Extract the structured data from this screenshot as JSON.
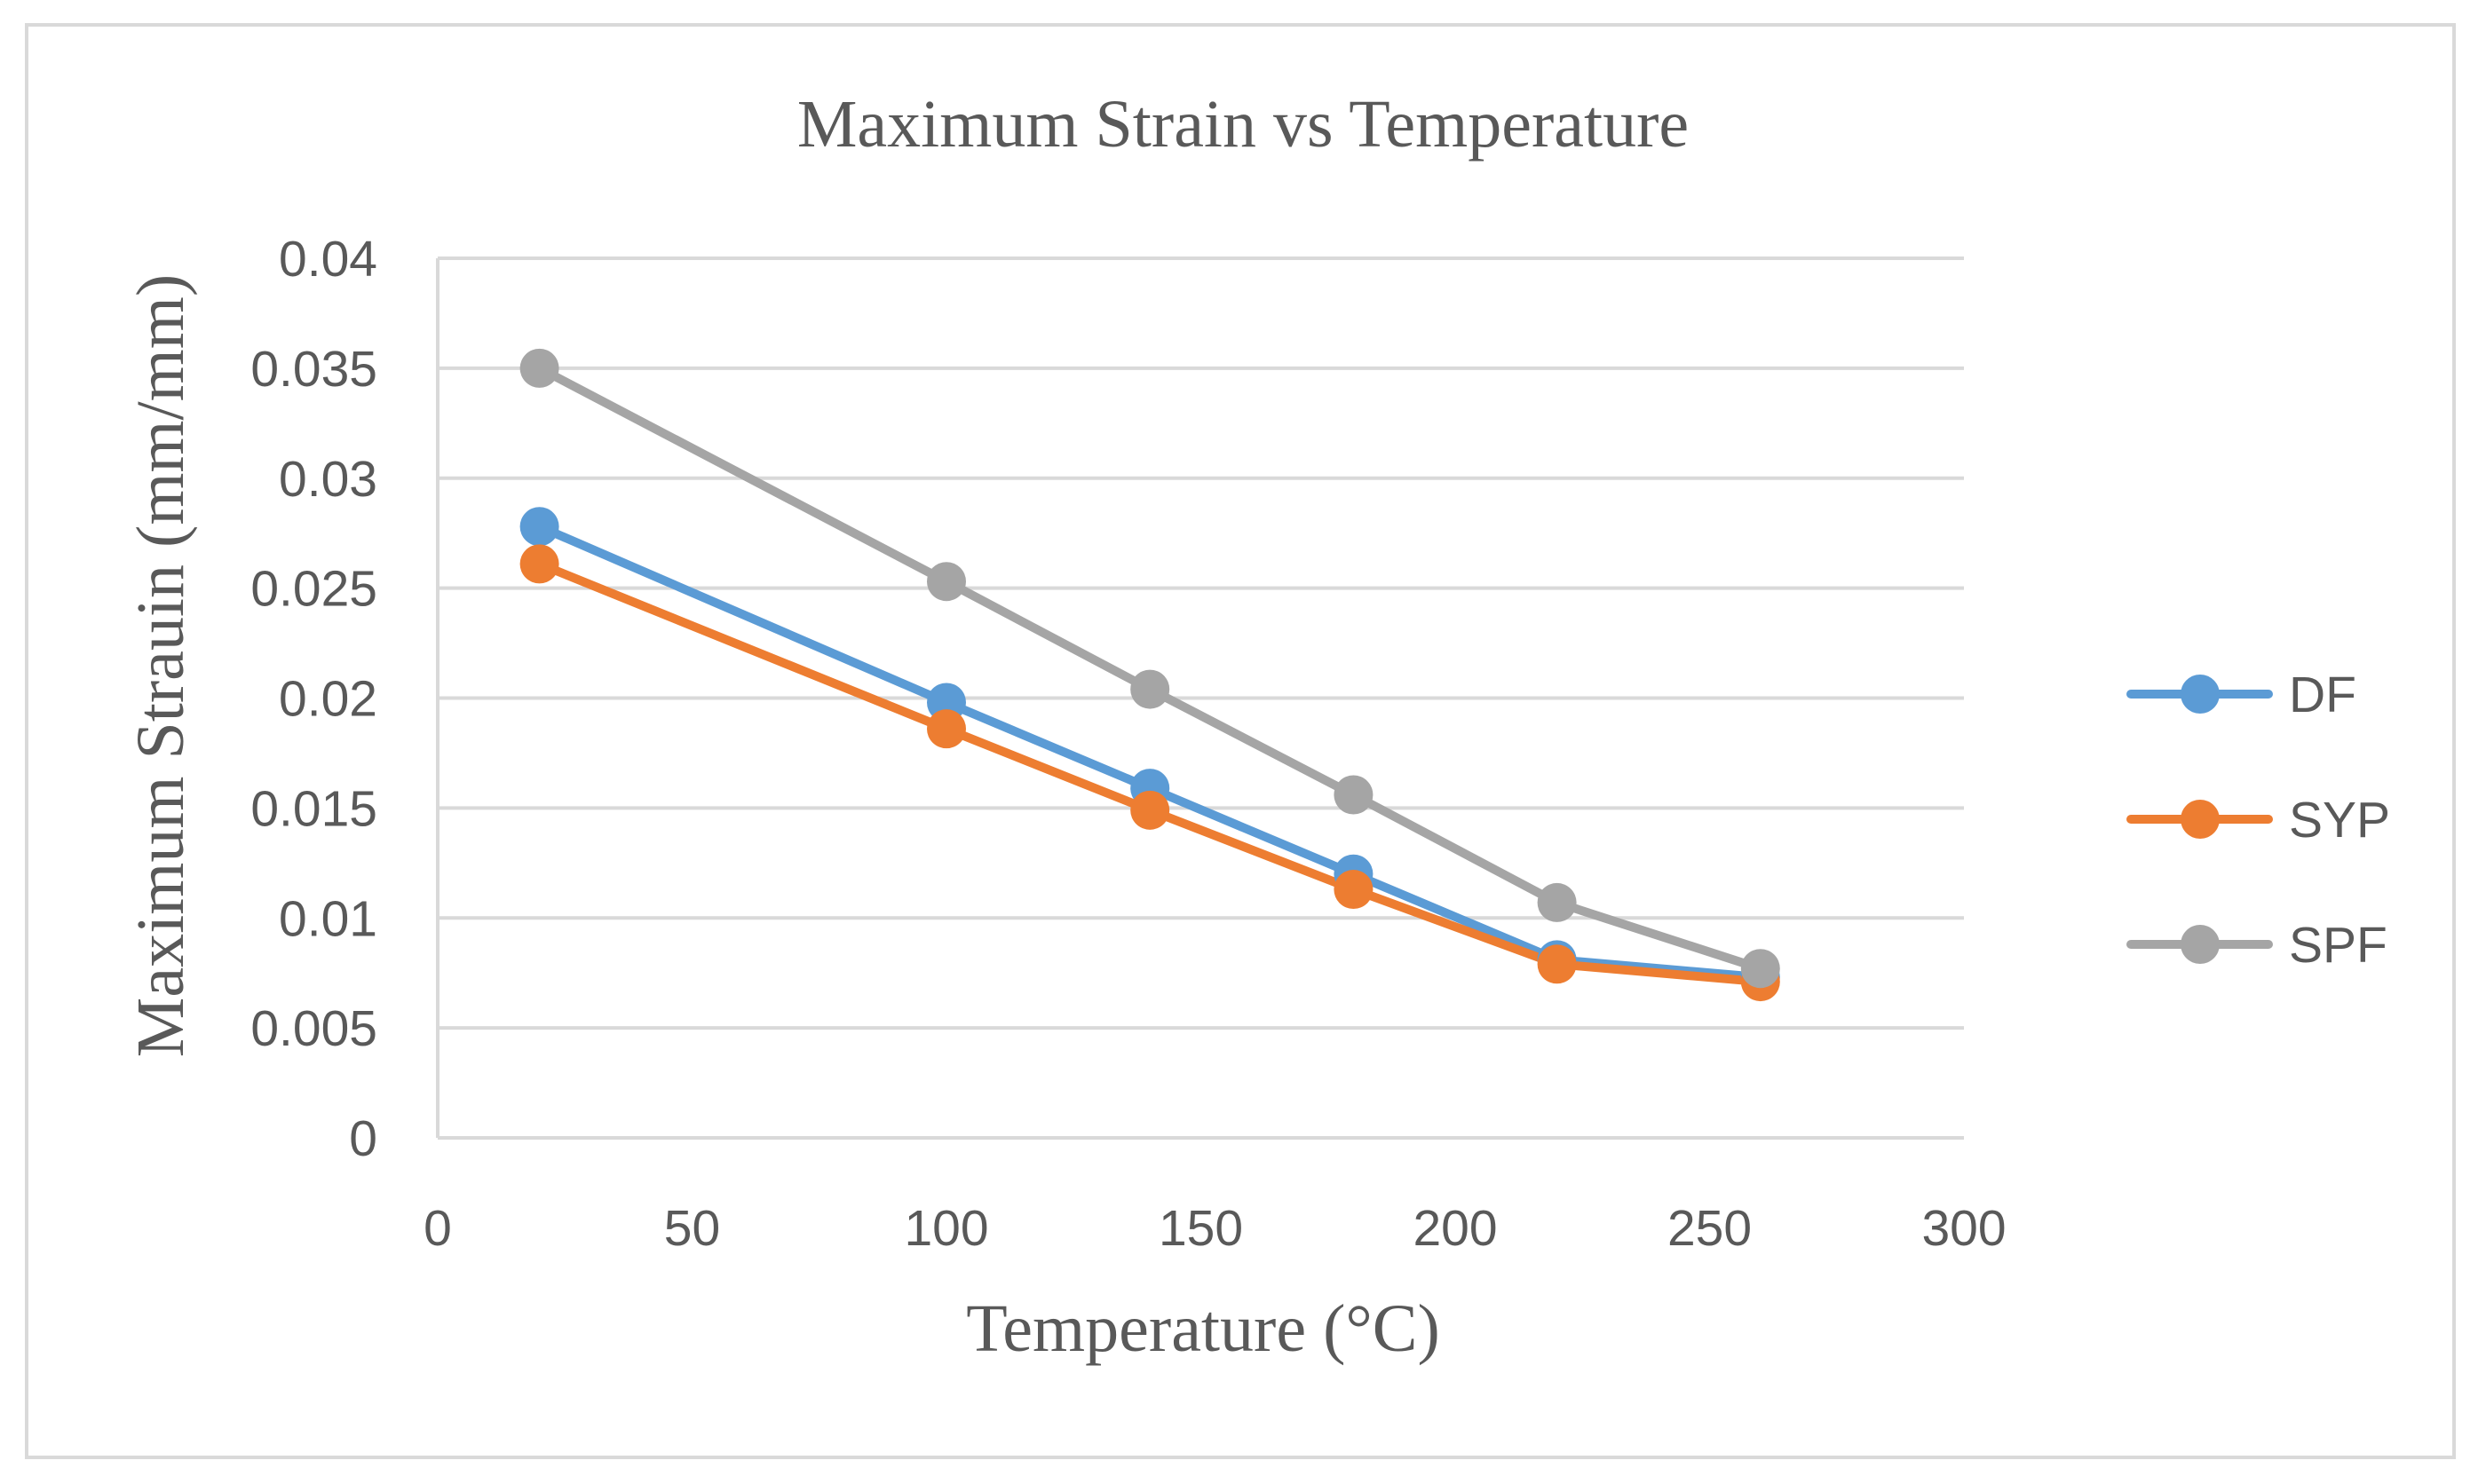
{
  "chart_data": {
    "type": "line",
    "title": "Maximum Strain vs Temperature",
    "xlabel": "Temperature (°C)",
    "ylabel": "Maximum Strauin (mm/mm)",
    "xlim": [
      0,
      300
    ],
    "ylim": [
      0,
      0.04
    ],
    "x_ticks": [
      "0",
      "50",
      "100",
      "150",
      "200",
      "250",
      "300"
    ],
    "y_ticks": [
      "0",
      "0.005",
      "0.01",
      "0.015",
      "0.02",
      "0.025",
      "0.03",
      "0.035",
      "0.04"
    ],
    "grid": true,
    "legend_position": "right",
    "x": [
      20,
      100,
      140,
      180,
      220,
      260
    ],
    "series": [
      {
        "name": "DF",
        "color": "#5b9bd5",
        "values": [
          0.0278,
          0.0198,
          0.0159,
          0.012,
          0.0081,
          0.0073
        ]
      },
      {
        "name": "SYP",
        "color": "#ed7d31",
        "values": [
          0.0261,
          0.0186,
          0.0149,
          0.0113,
          0.0079,
          0.0071
        ]
      },
      {
        "name": "SPF",
        "color": "#a5a5a5",
        "values": [
          0.035,
          0.0253,
          0.0204,
          0.0156,
          0.0107,
          0.0077
        ]
      }
    ]
  }
}
